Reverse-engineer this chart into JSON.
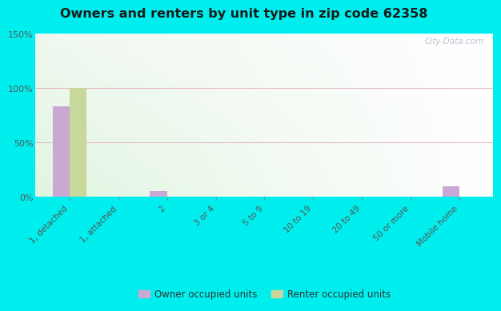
{
  "title": "Owners and renters by unit type in zip code 62358",
  "categories": [
    "1, detached",
    "1, attached",
    "2",
    "3 or 4",
    "5 to 9",
    "10 to 19",
    "20 to 49",
    "50 or more",
    "Mobile home"
  ],
  "owner_values": [
    83,
    0,
    5,
    0,
    0,
    0,
    0,
    0,
    10
  ],
  "renter_values": [
    100,
    0,
    0,
    0,
    0,
    0,
    0,
    0,
    0
  ],
  "owner_color": "#c9a8d4",
  "renter_color": "#c8d89a",
  "background_fig": "#00eeee",
  "ylim": [
    0,
    150
  ],
  "yticks": [
    0,
    50,
    100,
    150
  ],
  "bar_width": 0.35,
  "watermark": "City-Data.com"
}
